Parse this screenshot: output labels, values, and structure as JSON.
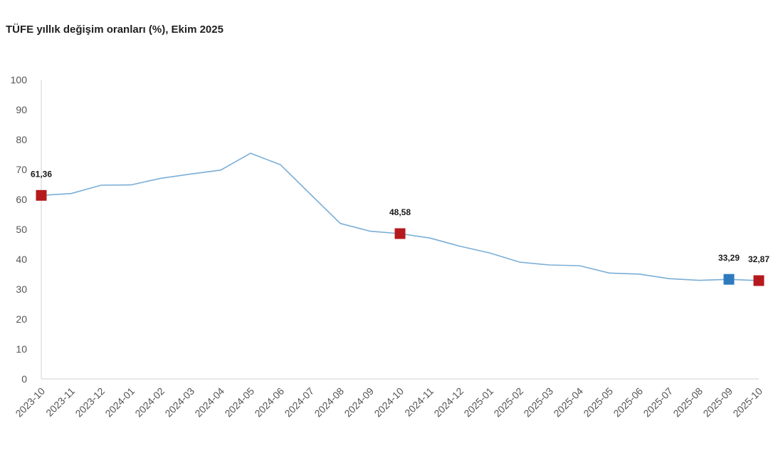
{
  "chart_data": {
    "type": "line",
    "title": "TÜFE yıllık değişim oranları (%), Ekim 2025",
    "xlabel": "",
    "ylabel": "",
    "ylim": [
      0,
      100
    ],
    "yticks": [
      "0",
      "10",
      "20",
      "30",
      "40",
      "50",
      "60",
      "70",
      "80",
      "90",
      "100"
    ],
    "grid": false,
    "categories": [
      "2023-10",
      "2023-11",
      "2023-12",
      "2024-01",
      "2024-02",
      "2024-03",
      "2024-04",
      "2024-05",
      "2024-06",
      "2024-07",
      "2024-08",
      "2024-09",
      "2024-10",
      "2024-11",
      "2024-12",
      "2025-01",
      "2025-02",
      "2025-03",
      "2025-04",
      "2025-05",
      "2025-06",
      "2025-07",
      "2025-08",
      "2025-09",
      "2025-10"
    ],
    "series": [
      {
        "values": [
          61.36,
          61.98,
          64.77,
          64.86,
          67.07,
          68.5,
          69.8,
          75.45,
          71.6,
          61.78,
          51.97,
          49.38,
          48.58,
          47.09,
          44.38,
          42.12,
          39.05,
          38.1,
          37.86,
          35.41,
          35.05,
          33.52,
          32.95,
          33.29,
          32.87
        ],
        "color": "#7aaed6"
      }
    ],
    "highlights": [
      {
        "index": 0,
        "label": "61,36",
        "color": "#b5191e"
      },
      {
        "index": 12,
        "label": "48,58",
        "color": "#b5191e"
      },
      {
        "index": 23,
        "label": "33,29",
        "color": "#2e7abf"
      },
      {
        "index": 24,
        "label": "32,87",
        "color": "#b5191e"
      }
    ]
  }
}
